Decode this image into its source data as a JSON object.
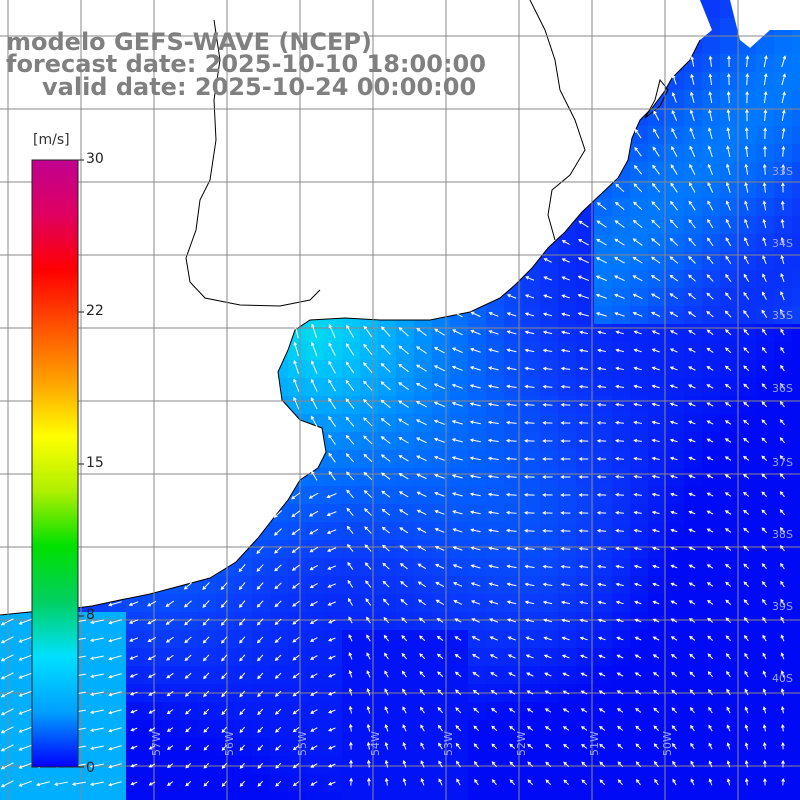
{
  "titles": {
    "line1": "modelo GEFS-WAVE (NCEP)",
    "line2": "forecast date: 2025-10-10 18:00:00",
    "line3": "valid date: 2025-10-24 00:00:00"
  },
  "colorbar": {
    "unit": "[m/s]",
    "ticks": [
      "30",
      "22",
      "15",
      "8",
      "0"
    ],
    "colors": [
      "#0000ff",
      "#00a0ff",
      "#00e0ff",
      "#00d060",
      "#00e000",
      "#b0f000",
      "#ffff00",
      "#ffa000",
      "#ff5000",
      "#ff0000",
      "#e00060",
      "#c00090"
    ]
  },
  "lat_labels": [
    "33S",
    "34S",
    "35S",
    "36S",
    "37S",
    "38S",
    "39S",
    "40S"
  ],
  "lon_labels": [
    "57W",
    "56W",
    "55W",
    "54W",
    "53W",
    "52W",
    "51W",
    "50W"
  ],
  "colors": {
    "land": "#ffffff",
    "grid": "#888888",
    "coast": "#000000",
    "arrow": "#ffffff",
    "title": "#808080"
  }
}
